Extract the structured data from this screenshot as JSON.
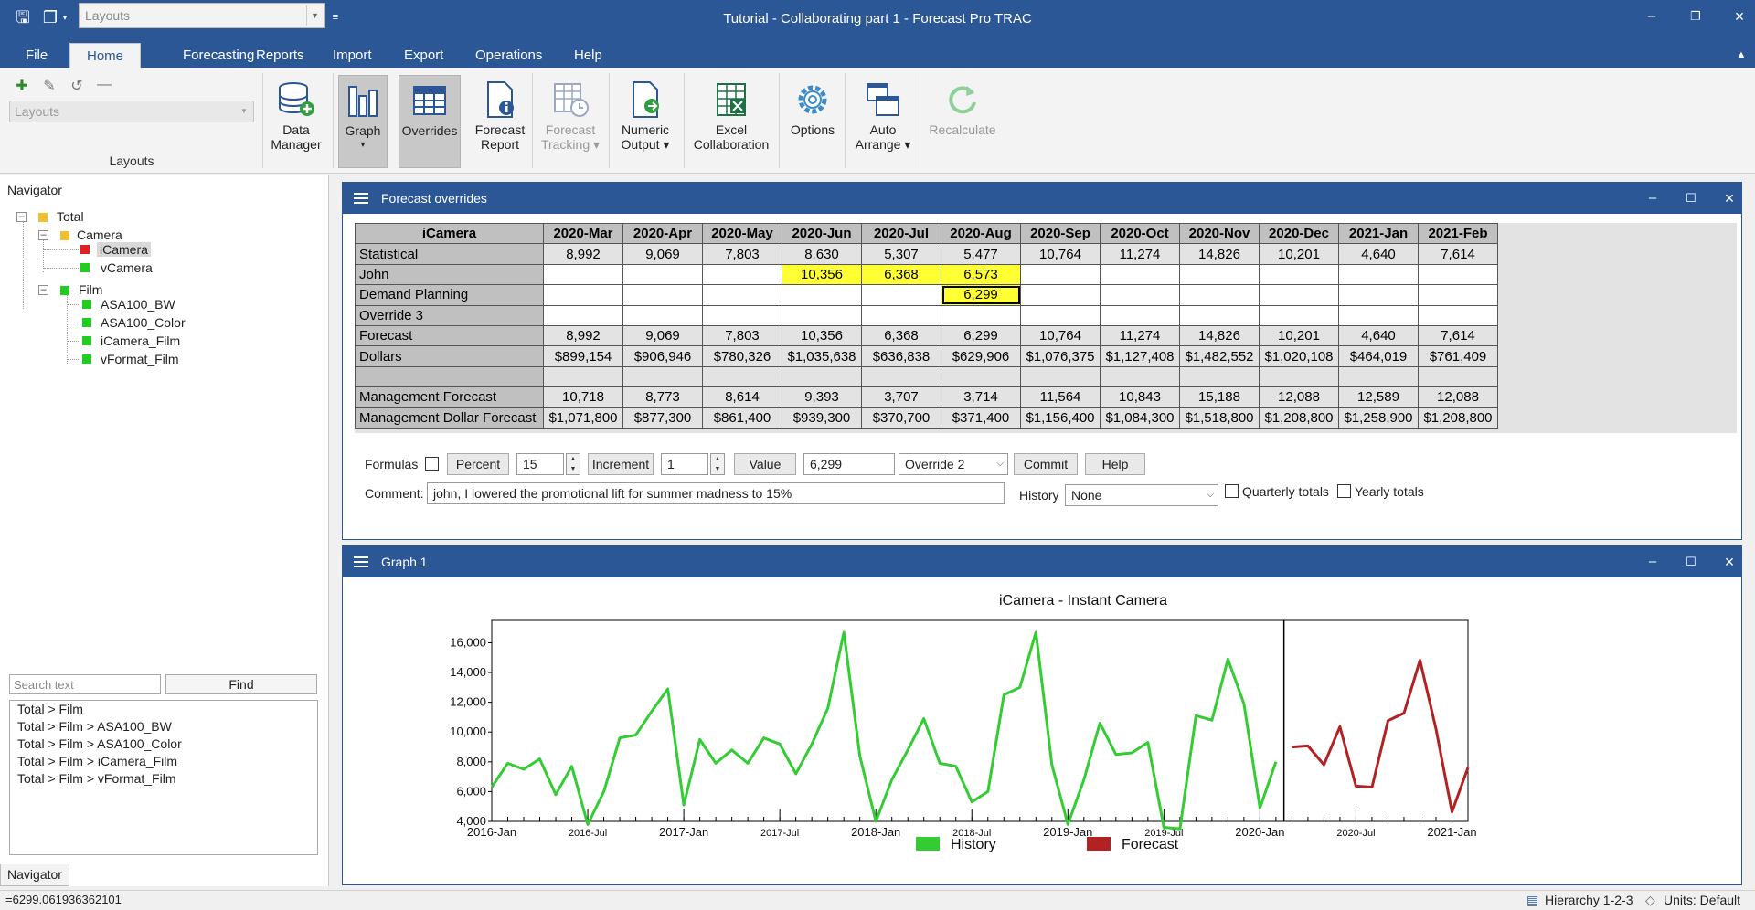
{
  "window": {
    "title": "Tutorial - Collaborating part 1 - Forecast Pro TRAC",
    "layout_combo_placeholder": "Layouts"
  },
  "menu": {
    "tabs": [
      {
        "label": "File",
        "active": false
      },
      {
        "label": "Home",
        "active": true
      },
      {
        "label": "Forecasting",
        "active": false
      },
      {
        "label": "Reports",
        "active": false
      },
      {
        "label": "Import",
        "active": false
      },
      {
        "label": "Export",
        "active": false
      },
      {
        "label": "Operations",
        "active": false
      },
      {
        "label": "Help",
        "active": false
      }
    ]
  },
  "ribbon": {
    "layout_combo_placeholder": "Layouts",
    "layouts_group_label": "Layouts",
    "buttons": {
      "data_manager": {
        "line1": "Data",
        "line2": "Manager"
      },
      "graph": {
        "line1": "Graph",
        "line2": "▾"
      },
      "overrides": {
        "line1": "Overrides",
        "line2": ""
      },
      "forecast_report": {
        "line1": "Forecast",
        "line2": "Report"
      },
      "forecast_tracking": {
        "line1": "Forecast",
        "line2": "Tracking ▾"
      },
      "numeric_output": {
        "line1": "Numeric",
        "line2": "Output ▾"
      },
      "excel_collaboration": {
        "line1": "Excel",
        "line2": "Collaboration"
      },
      "options": {
        "line1": "Options",
        "line2": ""
      },
      "auto_arrange": {
        "line1": "Auto",
        "line2": "Arrange ▾"
      },
      "recalculate": {
        "line1": "Recalculate",
        "line2": ""
      }
    }
  },
  "navigator": {
    "title": "Navigator",
    "tree": {
      "total": "Total",
      "camera": "Camera",
      "icamera": "iCamera",
      "vcamera": "vCamera",
      "film": "Film",
      "asa100_bw": "ASA100_BW",
      "asa100_color": "ASA100_Color",
      "icamera_film": "iCamera_Film",
      "vformat_film": "vFormat_Film"
    },
    "node_colors": {
      "group": "#f0c030",
      "selected": "#e02020",
      "ok": "#22cc22"
    },
    "search_placeholder": "Search text",
    "find_label": "Find",
    "results": [
      "Total > Film",
      "Total > Film > ASA100_BW",
      "Total > Film > ASA100_Color",
      "Total > Film > iCamera_Film",
      "Total > Film > vFormat_Film"
    ],
    "tab_label": "Navigator"
  },
  "overrides": {
    "title": "Forecast overrides",
    "item": "iCamera",
    "columns": [
      "2020-Mar",
      "2020-Apr",
      "2020-May",
      "2020-Jun",
      "2020-Jul",
      "2020-Aug",
      "2020-Sep",
      "2020-Oct",
      "2020-Nov",
      "2020-Dec",
      "2021-Jan",
      "2021-Feb"
    ],
    "rows": {
      "statistical": {
        "label": "Statistical",
        "values": [
          "8,992",
          "9,069",
          "7,803",
          "8,630",
          "5,307",
          "5,477",
          "10,764",
          "11,274",
          "14,826",
          "10,201",
          "4,640",
          "7,614"
        ]
      },
      "john": {
        "label": "John",
        "values": [
          "",
          "",
          "",
          "10,356",
          "6,368",
          "6,573",
          "",
          "",
          "",
          "",
          "",
          ""
        ]
      },
      "demand_planning": {
        "label": "Demand Planning",
        "values": [
          "",
          "",
          "",
          "",
          "",
          "6,299",
          "",
          "",
          "",
          "",
          "",
          ""
        ]
      },
      "override3": {
        "label": "Override 3",
        "values": [
          "",
          "",
          "",
          "",
          "",
          "",
          "",
          "",
          "",
          "",
          "",
          ""
        ]
      },
      "forecast": {
        "label": "Forecast",
        "values": [
          "8,992",
          "9,069",
          "7,803",
          "10,356",
          "6,368",
          "6,299",
          "10,764",
          "11,274",
          "14,826",
          "10,201",
          "4,640",
          "7,614"
        ]
      },
      "dollars": {
        "label": "Dollars",
        "values": [
          "$899,154",
          "$906,946",
          "$780,326",
          "$1,035,638",
          "$636,838",
          "$629,906",
          "$1,076,375",
          "$1,127,408",
          "$1,482,552",
          "$1,020,108",
          "$464,019",
          "$761,409"
        ]
      },
      "management_forecast": {
        "label": "Management Forecast",
        "values": [
          "10,718",
          "8,773",
          "8,614",
          "9,393",
          "3,707",
          "3,714",
          "11,564",
          "10,843",
          "15,188",
          "12,088",
          "12,589",
          "12,088"
        ]
      },
      "management_dollar": {
        "label": "Management Dollar Forecast",
        "values": [
          "$1,071,800",
          "$877,300",
          "$861,400",
          "$939,300",
          "$370,700",
          "$371,400",
          "$1,156,400",
          "$1,084,300",
          "$1,518,800",
          "$1,208,800",
          "$1,258,900",
          "$1,208,800"
        ]
      }
    },
    "controls": {
      "formulas_label": "Formulas",
      "percent_label": "Percent",
      "percent_value": "15",
      "increment_label": "Increment",
      "increment_value": "1",
      "value_label": "Value",
      "value_value": "6,299",
      "override_select": "Override 2",
      "commit_label": "Commit",
      "help_label": "Help",
      "comment_label": "Comment:",
      "comment_value": "john, I lowered the promotional lift for summer madness to 15%",
      "history_label": "History",
      "history_select": "None",
      "quarterly_label": "Quarterly totals",
      "yearly_label": "Yearly totals"
    }
  },
  "graph_panel": {
    "title": "Graph 1"
  },
  "chart_data": {
    "type": "line",
    "title": "iCamera - Instant Camera",
    "xlabel": "",
    "ylabel": "",
    "ylim": [
      4000,
      17500
    ],
    "y_ticks": [
      4000,
      6000,
      8000,
      10000,
      12000,
      14000,
      16000
    ],
    "y_tick_labels": [
      "4,000",
      "6,000",
      "8,000",
      "10,000",
      "12,000",
      "14,000",
      "16,000"
    ],
    "x_labels": [
      {
        "label": "2016-Jan",
        "index": 0,
        "major": true
      },
      {
        "label": "2016-Jul",
        "index": 6,
        "major": false
      },
      {
        "label": "2017-Jan",
        "index": 12,
        "major": true
      },
      {
        "label": "2017-Jul",
        "index": 18,
        "major": false
      },
      {
        "label": "2018-Jan",
        "index": 24,
        "major": true
      },
      {
        "label": "2018-Jul",
        "index": 30,
        "major": false
      },
      {
        "label": "2019-Jan",
        "index": 36,
        "major": true
      },
      {
        "label": "2019-Jul",
        "index": 42,
        "major": false
      },
      {
        "label": "2020-Jan",
        "index": 48,
        "major": true
      },
      {
        "label": "2020-Jul",
        "index": 54,
        "major": false
      },
      {
        "label": "2021-Jan",
        "index": 60,
        "major": true
      }
    ],
    "x_count": 62,
    "forecast_divider_index": 49.5,
    "legend_position": "bottom",
    "series": [
      {
        "name": "History",
        "color": "#33cc33",
        "start_index": 0,
        "values": [
          6300,
          7900,
          7500,
          8200,
          5800,
          7700,
          3800,
          6000,
          9600,
          9800,
          11400,
          12900,
          5100,
          9500,
          7900,
          8800,
          7900,
          9600,
          9200,
          7200,
          9200,
          11600,
          16700,
          8400,
          4000,
          6800,
          8800,
          10900,
          7900,
          7700,
          5300,
          6000,
          12500,
          13000,
          16700,
          7800,
          3800,
          6800,
          10600,
          8500,
          8600,
          9300,
          3600,
          3500,
          11100,
          10800,
          14900,
          11900,
          4900,
          8000
        ]
      },
      {
        "name": "Forecast",
        "color": "#b22222",
        "start_index": 50,
        "values": [
          8992,
          9069,
          7803,
          10356,
          6368,
          6299,
          10764,
          11274,
          14826,
          10201,
          4640,
          7614
        ]
      }
    ]
  },
  "statusbar": {
    "left": "=6299.061936362101",
    "hierarchy": "Hierarchy 1-2-3",
    "units": "Units: Default"
  }
}
